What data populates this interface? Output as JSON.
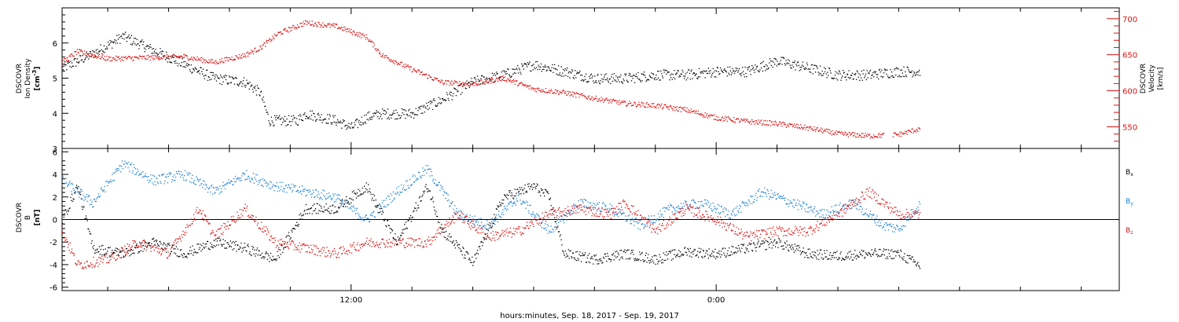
{
  "chart_data": [
    {
      "type": "scatter",
      "panel": "top",
      "ylabel_left": [
        "DSCOVR",
        "Ion Density",
        "[cm",
        "-3",
        "]"
      ],
      "ylabel_right": [
        "DSCOVR",
        "Velocity",
        "[km/s]"
      ],
      "ylim_left": [
        3,
        7
      ],
      "yticks_left": [
        3,
        4,
        5,
        6
      ],
      "yticks_left_labels": [
        "3",
        "4",
        "5",
        "6"
      ],
      "ylim_right": [
        520,
        715
      ],
      "yticks_right": [
        550,
        600,
        650,
        700
      ],
      "yticks_right_labels": [
        "550",
        "600",
        "650",
        "700"
      ],
      "colors": {
        "density": "#000000",
        "velocity": "#dd1111"
      },
      "density_control": [
        [
          2.5,
          5.3
        ],
        [
          3.5,
          5.7
        ],
        [
          4.5,
          6.2
        ],
        [
          5.5,
          5.8
        ],
        [
          6.5,
          5.4
        ],
        [
          7.5,
          5.0
        ],
        [
          8.5,
          4.9
        ],
        [
          9.0,
          4.6
        ],
        [
          9.3,
          3.8
        ],
        [
          10.2,
          3.8
        ],
        [
          10.5,
          4.0
        ],
        [
          11.0,
          3.9
        ],
        [
          11.5,
          3.8
        ],
        [
          12.0,
          3.6
        ],
        [
          12.5,
          3.9
        ],
        [
          13.0,
          4.0
        ],
        [
          14.0,
          4.0
        ],
        [
          15.0,
          4.4
        ],
        [
          16.0,
          4.9
        ],
        [
          17.0,
          5.1
        ],
        [
          18.0,
          5.4
        ],
        [
          19.0,
          5.2
        ],
        [
          20.0,
          5.0
        ],
        [
          21.0,
          5.0
        ],
        [
          22.0,
          5.1
        ],
        [
          23.0,
          5.1
        ],
        [
          24.0,
          5.2
        ],
        [
          25.0,
          5.2
        ],
        [
          26.0,
          5.5
        ],
        [
          27.0,
          5.3
        ],
        [
          28.0,
          5.1
        ],
        [
          29.0,
          5.1
        ],
        [
          30.0,
          5.2
        ],
        [
          30.7,
          5.2
        ]
      ],
      "velocity_control": [
        [
          2.5,
          640
        ],
        [
          3.0,
          655
        ],
        [
          4.0,
          645
        ],
        [
          6.5,
          648
        ],
        [
          7.5,
          640
        ],
        [
          8.5,
          650
        ],
        [
          9.0,
          660
        ],
        [
          9.6,
          680
        ],
        [
          10.5,
          695
        ],
        [
          11.5,
          690
        ],
        [
          12.5,
          675
        ],
        [
          13.0,
          650
        ],
        [
          14.0,
          630
        ],
        [
          15.0,
          612
        ],
        [
          16.0,
          610
        ],
        [
          17.0,
          618
        ],
        [
          18.0,
          603
        ],
        [
          19.0,
          598
        ],
        [
          20.0,
          590
        ],
        [
          21.0,
          583
        ],
        [
          22.0,
          580
        ],
        [
          23.0,
          574
        ],
        [
          24.0,
          563
        ],
        [
          25.0,
          558
        ],
        [
          26.0,
          555
        ],
        [
          27.0,
          549
        ],
        [
          28.0,
          541
        ],
        [
          29.0,
          538
        ],
        [
          30.0,
          540
        ],
        [
          30.7,
          548
        ]
      ],
      "gaps_velocity": [
        [
          29.5,
          29.8
        ]
      ]
    },
    {
      "type": "scatter",
      "panel": "bottom",
      "ylabel_left": [
        "DSCOVR",
        "B",
        "[nT]"
      ],
      "ylim": [
        -6.3,
        6.3
      ],
      "yticks": [
        -6,
        -4,
        -2,
        0,
        2,
        4,
        6
      ],
      "yticks_labels": [
        "-6",
        "-4",
        "-2",
        "0",
        "2",
        "4",
        "6"
      ],
      "zero_line": true,
      "legend": [
        {
          "label": "B",
          "sub": "x",
          "color": "#000000"
        },
        {
          "label": "B",
          "sub": "y",
          "color": "#1a7fd4"
        },
        {
          "label": "B",
          "sub": "z",
          "color": "#dd1111"
        }
      ],
      "bx_control": [
        [
          2.5,
          0.0
        ],
        [
          3.0,
          3.0
        ],
        [
          3.5,
          -2.5
        ],
        [
          4.5,
          -3.0
        ],
        [
          5.5,
          -2.0
        ],
        [
          6.5,
          -3.0
        ],
        [
          7.5,
          -2.0
        ],
        [
          8.5,
          -2.5
        ],
        [
          9.5,
          -3.5
        ],
        [
          10.5,
          1.0
        ],
        [
          11.5,
          1.0
        ],
        [
          12.5,
          3.0
        ],
        [
          13.5,
          -2.0
        ],
        [
          14.5,
          3.0
        ],
        [
          15.0,
          -1.0
        ],
        [
          16.0,
          -3.8
        ],
        [
          17.0,
          2.0
        ],
        [
          18.0,
          3.0
        ],
        [
          18.5,
          2.0
        ],
        [
          19.0,
          -3.0
        ],
        [
          20.0,
          -3.5
        ],
        [
          21.0,
          -3.0
        ],
        [
          22.0,
          -3.5
        ],
        [
          23.0,
          -2.8
        ],
        [
          24.0,
          -3.0
        ],
        [
          25.0,
          -2.5
        ],
        [
          26.0,
          -2.0
        ],
        [
          27.0,
          -3.0
        ],
        [
          28.0,
          -3.2
        ],
        [
          29.0,
          -3.0
        ],
        [
          30.0,
          -3.0
        ],
        [
          30.7,
          -4.1
        ]
      ],
      "by_control": [
        [
          2.5,
          3.5
        ],
        [
          3.5,
          1.5
        ],
        [
          4.5,
          5.0
        ],
        [
          5.5,
          3.5
        ],
        [
          6.5,
          4.0
        ],
        [
          7.5,
          2.5
        ],
        [
          8.5,
          4.0
        ],
        [
          9.5,
          3.0
        ],
        [
          10.5,
          2.5
        ],
        [
          11.5,
          2.0
        ],
        [
          12.5,
          0.0
        ],
        [
          13.5,
          2.5
        ],
        [
          14.5,
          4.5
        ],
        [
          15.5,
          0.5
        ],
        [
          16.5,
          -0.5
        ],
        [
          17.5,
          2.0
        ],
        [
          18.5,
          -1.0
        ],
        [
          19.5,
          1.5
        ],
        [
          20.5,
          1.0
        ],
        [
          21.5,
          -0.5
        ],
        [
          22.5,
          1.0
        ],
        [
          23.5,
          1.5
        ],
        [
          24.5,
          0.5
        ],
        [
          25.5,
          2.5
        ],
        [
          26.5,
          1.5
        ],
        [
          27.5,
          0.5
        ],
        [
          28.5,
          1.5
        ],
        [
          29.5,
          -0.5
        ],
        [
          30.0,
          -0.8
        ],
        [
          30.7,
          1.5
        ]
      ],
      "bz_control": [
        [
          2.5,
          -1.0
        ],
        [
          3.0,
          -4.0
        ],
        [
          4.0,
          -3.5
        ],
        [
          5.0,
          -2.0
        ],
        [
          6.0,
          -3.0
        ],
        [
          7.0,
          1.0
        ],
        [
          7.5,
          -1.5
        ],
        [
          8.5,
          1.0
        ],
        [
          9.5,
          -2.0
        ],
        [
          10.5,
          -2.5
        ],
        [
          11.5,
          -3.0
        ],
        [
          12.5,
          -2.0
        ],
        [
          13.5,
          -2.0
        ],
        [
          14.5,
          -2.0
        ],
        [
          15.5,
          0.5
        ],
        [
          16.5,
          -1.5
        ],
        [
          17.5,
          -1.0
        ],
        [
          18.5,
          0.5
        ],
        [
          19.5,
          1.0
        ],
        [
          20.5,
          0.5
        ],
        [
          21.0,
          1.5
        ],
        [
          22.0,
          -1.0
        ],
        [
          23.0,
          1.0
        ],
        [
          24.0,
          0.0
        ],
        [
          25.0,
          -1.5
        ],
        [
          26.0,
          -1.0
        ],
        [
          27.0,
          -1.0
        ],
        [
          28.0,
          0.5
        ],
        [
          29.0,
          2.5
        ],
        [
          30.0,
          0.5
        ],
        [
          30.7,
          0.5
        ]
      ]
    }
  ],
  "xaxis": {
    "title": "hours:minutes, Sep. 18, 2017 - Sep. 19, 2017",
    "range_hours": [
      2.5,
      37.25
    ],
    "tick_labels": [
      {
        "t": 12,
        "label": "12:00"
      },
      {
        "t": 24,
        "label": "0:00"
      }
    ],
    "minor_ticks_every_hours": 2
  }
}
